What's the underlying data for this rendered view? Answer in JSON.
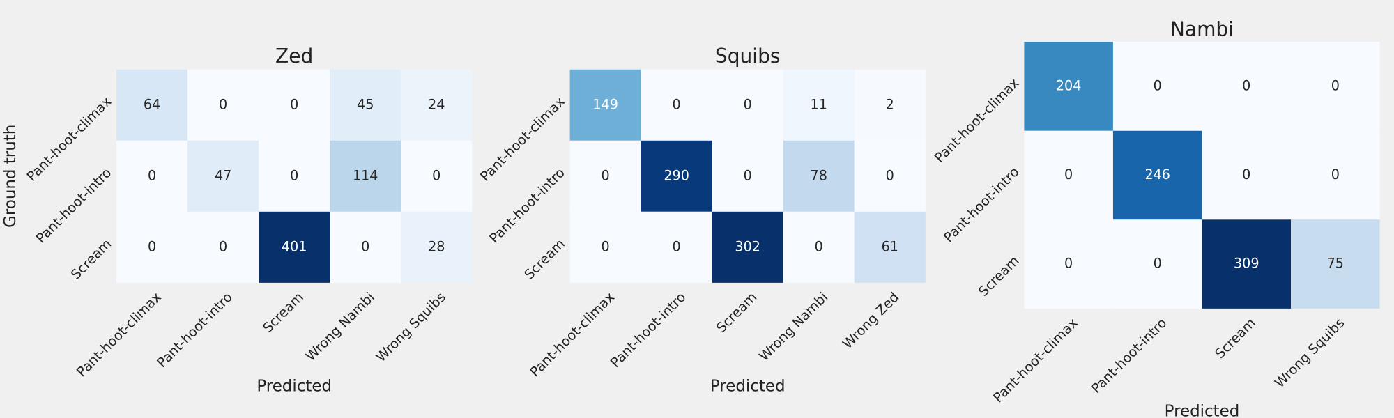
{
  "chart_data": [
    {
      "type": "heatmap",
      "title": "Zed",
      "x_label": "Predicted",
      "y_label": "Ground truth",
      "colormap": "Blues",
      "x_categories": [
        "Pant-hoot-climax",
        "Pant-hoot-intro",
        "Scream",
        "Wrong Nambi",
        "Wrong Squibs"
      ],
      "y_categories": [
        "Pant-hoot-climax",
        "Pant-hoot-intro",
        "Scream"
      ],
      "values": [
        [
          64,
          0,
          0,
          45,
          24
        ],
        [
          0,
          47,
          0,
          114,
          0
        ],
        [
          0,
          0,
          401,
          0,
          28
        ]
      ]
    },
    {
      "type": "heatmap",
      "title": "Squibs",
      "x_label": "Predicted",
      "colormap": "Blues",
      "x_categories": [
        "Pant-hoot-climax",
        "Pant-hoot-intro",
        "Scream",
        "Wrong Nambi",
        "Wrong Zed"
      ],
      "y_categories": [
        "Pant-hoot-climax",
        "Pant-hoot-intro",
        "Scream"
      ],
      "values": [
        [
          149,
          0,
          0,
          11,
          2
        ],
        [
          0,
          290,
          0,
          78,
          0
        ],
        [
          0,
          0,
          302,
          0,
          61
        ]
      ]
    },
    {
      "type": "heatmap",
      "title": "Nambi",
      "x_label": "Predicted",
      "colormap": "Blues",
      "x_categories": [
        "Pant-hoot-climax",
        "Pant-hoot-intro",
        "Scream",
        "Wrong Squibs"
      ],
      "y_categories": [
        "Pant-hoot-climax",
        "Pant-hoot-intro",
        "Scream"
      ],
      "values": [
        [
          204,
          0,
          0,
          0
        ],
        [
          0,
          246,
          0,
          0
        ],
        [
          0,
          0,
          309,
          75
        ]
      ]
    }
  ]
}
